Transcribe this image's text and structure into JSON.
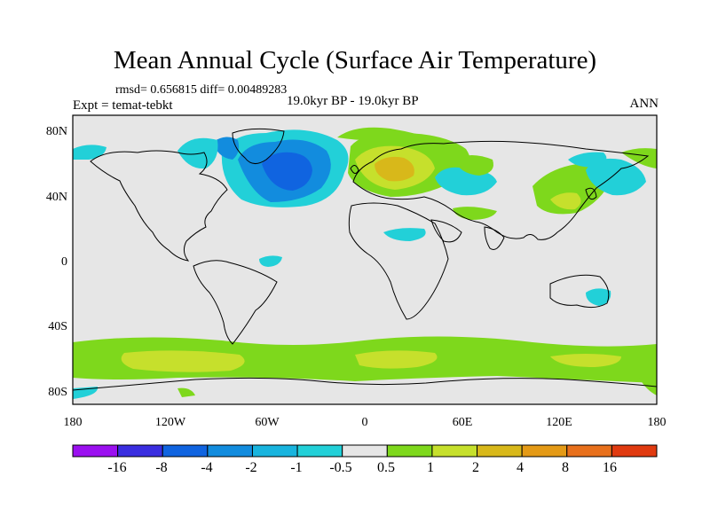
{
  "title": "Mean Annual Cycle (Surface Air Temperature)",
  "stats": "rmsd= 0.656815 diff= 0.00489283",
  "expt": "Expt = temat-tebkt",
  "period": "19.0kyr BP - 19.0kyr BP",
  "season": "ANN",
  "map": {
    "lat_labels": [
      "80N",
      "40N",
      "0",
      "40S",
      "80S"
    ],
    "lat_values": [
      80,
      40,
      0,
      -40,
      -80
    ],
    "lon_labels": [
      "180",
      "120W",
      "60W",
      "0",
      "60E",
      "120E",
      "180"
    ],
    "lon_values": [
      -180,
      -120,
      -60,
      0,
      60,
      120,
      180
    ],
    "ocean_color": "#e6e6e6"
  },
  "colorbar": {
    "levels": [
      "-16",
      "-8",
      "-4",
      "-2",
      "-1",
      "-0.5",
      "0.5",
      "1",
      "2",
      "4",
      "8",
      "16"
    ],
    "colors": [
      "#9b10f0",
      "#3a2ee0",
      "#1064e0",
      "#128cde",
      "#18b4de",
      "#22d0d8",
      "#e6e6e6",
      "#7ed81c",
      "#c6e02c",
      "#d8b81a",
      "#e49a16",
      "#e8701c",
      "#e03a10"
    ]
  }
}
